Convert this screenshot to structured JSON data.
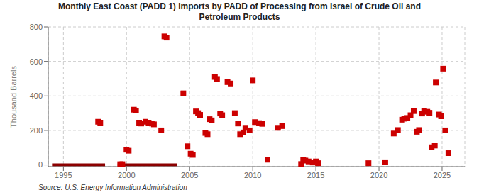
{
  "chart_data": {
    "type": "scatter",
    "title": "Monthly East Coast (PADD 1) Imports by PADD of Processing from Israel of Crude Oil and\nPetroleum Products",
    "ylabel": "Thousand Barrels",
    "source": "Source: U.S. Energy Information Administration",
    "x": [
      1997.75,
      1997.92,
      1999.5,
      1999.67,
      2000.0,
      2000.17,
      2000.58,
      2000.75,
      2001.0,
      2001.17,
      2001.5,
      2001.75,
      2002.0,
      2002.17,
      2002.75,
      2003.0,
      2003.17,
      2004.5,
      2004.83,
      2005.08,
      2005.25,
      2005.5,
      2005.67,
      2005.83,
      2006.25,
      2006.42,
      2006.58,
      2006.75,
      2007.0,
      2007.17,
      2007.42,
      2007.58,
      2008.0,
      2008.25,
      2008.58,
      2008.83,
      2009.0,
      2009.25,
      2009.42,
      2009.75,
      2010.0,
      2010.17,
      2010.5,
      2010.75,
      2011.17,
      2012.0,
      2012.33,
      2013.83,
      2014.0,
      2014.17,
      2014.42,
      2014.75,
      2015.0,
      2015.17,
      2019.17,
      2020.5,
      2021.17,
      2021.5,
      2021.83,
      2022.0,
      2022.25,
      2022.5,
      2022.75,
      2023.0,
      2023.17,
      2023.42,
      2023.58,
      2023.83,
      2024.0,
      2024.17,
      2024.42,
      2024.5,
      2024.75,
      2024.92,
      2025.08,
      2025.25,
      2025.5
    ],
    "values": [
      250,
      245,
      4,
      4,
      88,
      82,
      320,
      315,
      245,
      240,
      250,
      245,
      240,
      235,
      200,
      745,
      738,
      415,
      108,
      65,
      58,
      310,
      300,
      290,
      185,
      178,
      265,
      258,
      510,
      498,
      298,
      288,
      480,
      472,
      300,
      240,
      178,
      188,
      215,
      200,
      490,
      248,
      242,
      238,
      30,
      215,
      225,
      5,
      30,
      25,
      20,
      14,
      20,
      10,
      10,
      15,
      182,
      202,
      262,
      268,
      272,
      288,
      312,
      192,
      202,
      298,
      312,
      308,
      302,
      102,
      112,
      478,
      292,
      282,
      558,
      200,
      68
    ],
    "color": "#cc0000",
    "marker": "square",
    "segments": {
      "x": [
        [
          1994.1,
          1998.3
        ],
        [
          1999.3,
          2004.0
        ]
      ],
      "y": 0,
      "color": "#8b0000"
    },
    "xlim": [
      1993.8,
      2026.8
    ],
    "ylim": [
      -10,
      800
    ],
    "xticks": [
      1995,
      2000,
      2005,
      2010,
      2015,
      2020,
      2025
    ],
    "yticks": [
      0,
      200,
      400,
      600,
      800
    ],
    "grid": true
  }
}
